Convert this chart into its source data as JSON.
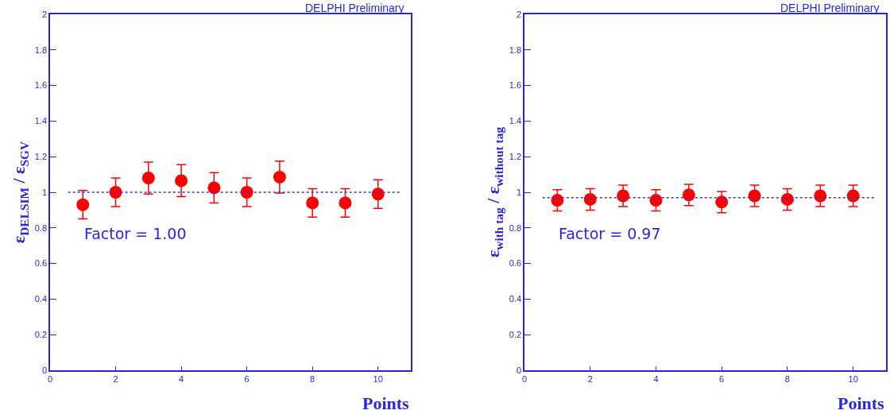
{
  "chart_data": [
    {
      "type": "scatter",
      "ylabel": "ε$_{DELSIM}$ / ε$_{SGV}$",
      "xlabel": "Points",
      "x": [
        1,
        2,
        3,
        4,
        5,
        6,
        7,
        8,
        9,
        10
      ],
      "series": [
        {
          "color": "#ff0000",
          "values": [
            0.93,
            1.0,
            1.08,
            1.065,
            1.025,
            1.0,
            1.085,
            0.94,
            0.94,
            0.99
          ],
          "errors": [
            0.08,
            0.08,
            0.09,
            0.09,
            0.085,
            0.08,
            0.09,
            0.08,
            0.08,
            0.08
          ]
        }
      ],
      "xlim": [
        0,
        11
      ],
      "xticks": [
        0,
        2,
        4,
        6,
        8,
        10
      ],
      "ylim": [
        0,
        2
      ],
      "yticks": [
        0,
        0.2,
        0.4,
        0.6,
        0.8,
        1,
        1.2,
        1.4,
        1.6,
        1.8,
        2
      ],
      "ref_lines": [
        {
          "axis": "y",
          "value": 1.0,
          "color": "#3333ee",
          "line_style": "dotted"
        }
      ],
      "annotations": [
        "DELPHI Preliminary",
        "Factor = 1.00"
      ],
      "marker": "circle"
    },
    {
      "type": "scatter",
      "ylabel": "ε$_{with tag}$ / ε$_{without tag}$",
      "xlabel": "Points",
      "x": [
        1,
        2,
        3,
        4,
        5,
        6,
        7,
        8,
        9,
        10
      ],
      "series": [
        {
          "color": "#ff0000",
          "values": [
            0.955,
            0.96,
            0.98,
            0.955,
            0.985,
            0.945,
            0.98,
            0.96,
            0.98,
            0.98
          ],
          "errors": [
            0.06,
            0.06,
            0.06,
            0.06,
            0.06,
            0.06,
            0.06,
            0.06,
            0.06,
            0.06
          ]
        }
      ],
      "xlim": [
        0,
        11
      ],
      "xticks": [
        0,
        2,
        4,
        6,
        8,
        10
      ],
      "ylim": [
        0,
        2
      ],
      "yticks": [
        0,
        0.2,
        0.4,
        0.6,
        0.8,
        1,
        1.2,
        1.4,
        1.6,
        1.8,
        2
      ],
      "ref_lines": [
        {
          "axis": "y",
          "value": 0.97,
          "color": "#3333ee",
          "line_style": "dotted"
        }
      ],
      "annotations": [
        "DELPHI Preliminary",
        "Factor = 0.97"
      ],
      "marker": "circle"
    }
  ]
}
